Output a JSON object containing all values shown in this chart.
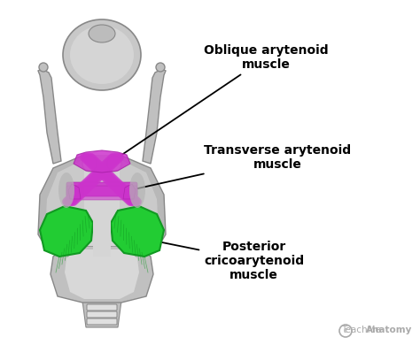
{
  "background_color": "#ffffff",
  "labels": {
    "oblique": "Oblique arytenoid\nmuscle",
    "transverse": "Transverse arytenoid\nmuscle",
    "posterior": "Posterior\ncricoarytenoid\nmuscle"
  },
  "magenta_color": "#cc33cc",
  "green_color": "#22cc33",
  "gray_light": "#d0d0d0",
  "gray_mid": "#b0b0b0",
  "gray_dark": "#888888",
  "gray_body": "#c0c0c0",
  "watermark_text": "TeachMe",
  "watermark_bold": "Anatomy",
  "fig_width": 4.74,
  "fig_height": 3.9,
  "dpi": 100
}
